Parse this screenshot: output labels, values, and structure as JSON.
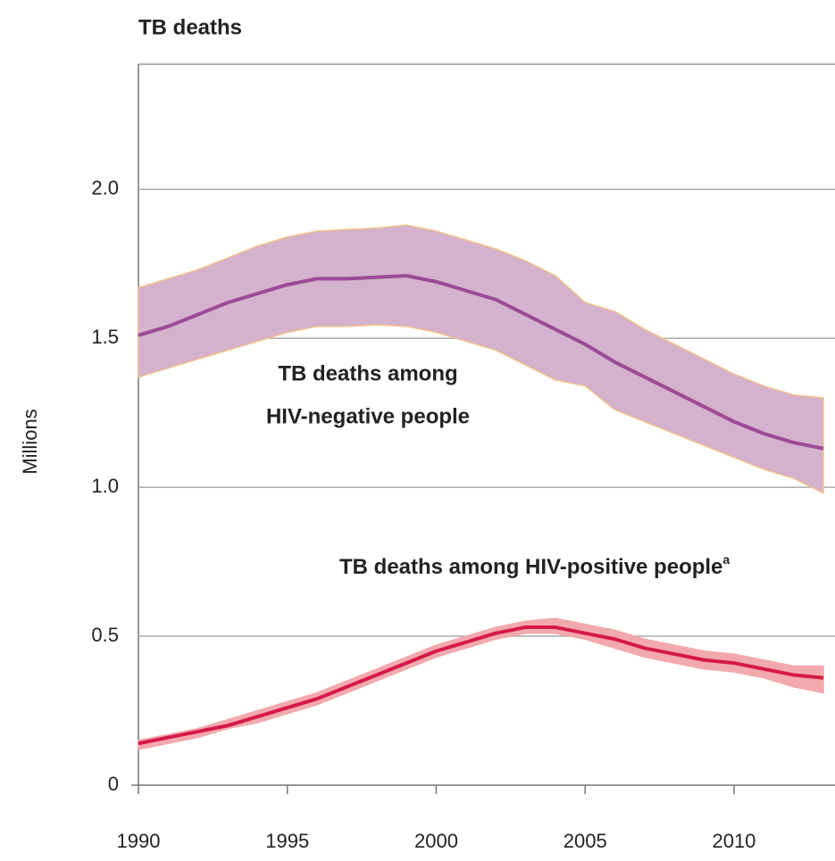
{
  "chart_data": {
    "type": "line",
    "title": "TB deaths",
    "y_label": "Millions",
    "x": [
      1990,
      1991,
      1992,
      1993,
      1994,
      1995,
      1996,
      1997,
      1998,
      1999,
      2000,
      2001,
      2002,
      2003,
      2004,
      2005,
      2006,
      2007,
      2008,
      2009,
      2010,
      2011,
      2012,
      2013
    ],
    "xlim": [
      1990,
      2013
    ],
    "xticks": [
      1990,
      1995,
      2000,
      2005,
      2010
    ],
    "ylim": [
      0,
      2.42
    ],
    "yticks": [
      0,
      0.5,
      {
        "value": 1.0,
        "label": "1.0"
      },
      1.5,
      {
        "value": 2.0,
        "label": "2.0"
      }
    ],
    "grid": true,
    "series": [
      {
        "color": "#9b4a96",
        "band_color": "#d4b1cd",
        "band_edge": "#f3c28c",
        "values": [
          1.51,
          1.54,
          1.58,
          1.62,
          1.65,
          1.68,
          1.7,
          1.7,
          1.705,
          1.71,
          1.69,
          1.66,
          1.63,
          1.58,
          1.53,
          1.48,
          1.42,
          1.37,
          1.32,
          1.27,
          1.22,
          1.18,
          1.15,
          1.13
        ],
        "upper": [
          1.67,
          1.7,
          1.73,
          1.77,
          1.81,
          1.84,
          1.86,
          1.865,
          1.87,
          1.88,
          1.86,
          1.83,
          1.8,
          1.76,
          1.71,
          1.62,
          1.59,
          1.53,
          1.48,
          1.43,
          1.38,
          1.34,
          1.31,
          1.3
        ],
        "lower": [
          1.37,
          1.4,
          1.43,
          1.46,
          1.49,
          1.52,
          1.54,
          1.54,
          1.545,
          1.54,
          1.52,
          1.49,
          1.46,
          1.41,
          1.36,
          1.34,
          1.26,
          1.22,
          1.18,
          1.14,
          1.1,
          1.06,
          1.03,
          0.98
        ]
      },
      {
        "color": "#d6194a",
        "band_color": "#f2a9ad",
        "band_edge": "#f2a9ad",
        "values": [
          0.14,
          0.16,
          0.18,
          0.2,
          0.23,
          0.26,
          0.29,
          0.33,
          0.37,
          0.41,
          0.45,
          0.48,
          0.51,
          0.53,
          0.53,
          0.51,
          0.49,
          0.46,
          0.44,
          0.42,
          0.41,
          0.39,
          0.37,
          0.36
        ],
        "upper": [
          0.15,
          0.17,
          0.19,
          0.22,
          0.25,
          0.28,
          0.31,
          0.35,
          0.39,
          0.43,
          0.47,
          0.5,
          0.53,
          0.55,
          0.56,
          0.54,
          0.52,
          0.49,
          0.47,
          0.45,
          0.44,
          0.42,
          0.4,
          0.4
        ],
        "lower": [
          0.12,
          0.14,
          0.16,
          0.19,
          0.21,
          0.24,
          0.27,
          0.31,
          0.35,
          0.39,
          0.43,
          0.46,
          0.49,
          0.51,
          0.51,
          0.49,
          0.46,
          0.43,
          0.41,
          0.39,
          0.38,
          0.36,
          0.33,
          0.31
        ]
      }
    ],
    "annotations": [
      {
        "lines": [
          "TB deaths among",
          "HIV-negative people"
        ]
      },
      {
        "text": "TB deaths among HIV-positive people",
        "sup": "a"
      }
    ]
  }
}
